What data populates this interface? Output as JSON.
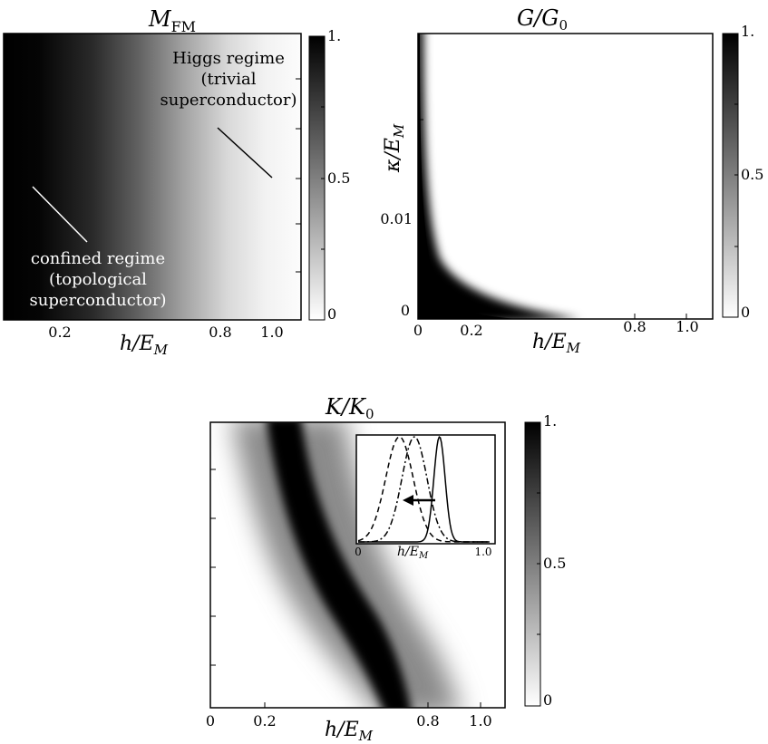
{
  "chart_data": [
    {
      "type": "heatmap",
      "title": "M_FM",
      "xlabel": "h/E_M",
      "xticks": [
        "0.2",
        "0.8",
        "1.0"
      ],
      "colorbar": {
        "ticks": [
          "1.",
          "0.5",
          "0"
        ],
        "range": [
          0,
          1
        ]
      },
      "annotations": [
        {
          "lines": [
            "Higgs regime",
            "(trivial",
            "superconductor)"
          ]
        },
        {
          "lines": [
            "confined regime",
            "(topological",
            "superconductor)"
          ]
        }
      ],
      "description_of_field": "value 1 (black) at low h, decaying smoothly to 0 (white) near h=1",
      "profile": {
        "h": [
          0.0,
          0.2,
          0.4,
          0.6,
          0.8,
          1.0
        ],
        "value": [
          1.0,
          0.95,
          0.7,
          0.4,
          0.15,
          0.03
        ]
      }
    },
    {
      "type": "heatmap",
      "title": "G/G_0",
      "xlabel": "h/E_M",
      "ylabel": "κ/E_M",
      "xticks": [
        "0",
        "0.2",
        "0.8",
        "1.0"
      ],
      "yticks": [
        "0",
        "0.01"
      ],
      "colorbar": {
        "ticks": [
          "1.",
          "0.5",
          "0"
        ],
        "range": [
          0,
          1
        ]
      }
    },
    {
      "type": "heatmap",
      "title": "K/K_0",
      "xlabel": "h/E_M",
      "xticks": [
        "0",
        "0.2",
        "0.8",
        "1.0"
      ],
      "colorbar": {
        "ticks": [
          "1.",
          "0.5",
          "0"
        ],
        "range": [
          0,
          1
        ]
      },
      "inset": {
        "type": "line",
        "xlabel": "h/E_M",
        "xticks": [
          "0",
          "1.0"
        ],
        "series": [
          {
            "style": "dashed",
            "peak_h": 0.33
          },
          {
            "style": "dash-dot",
            "peak_h": 0.45
          },
          {
            "style": "solid",
            "peak_h": 0.65
          }
        ]
      }
    }
  ]
}
